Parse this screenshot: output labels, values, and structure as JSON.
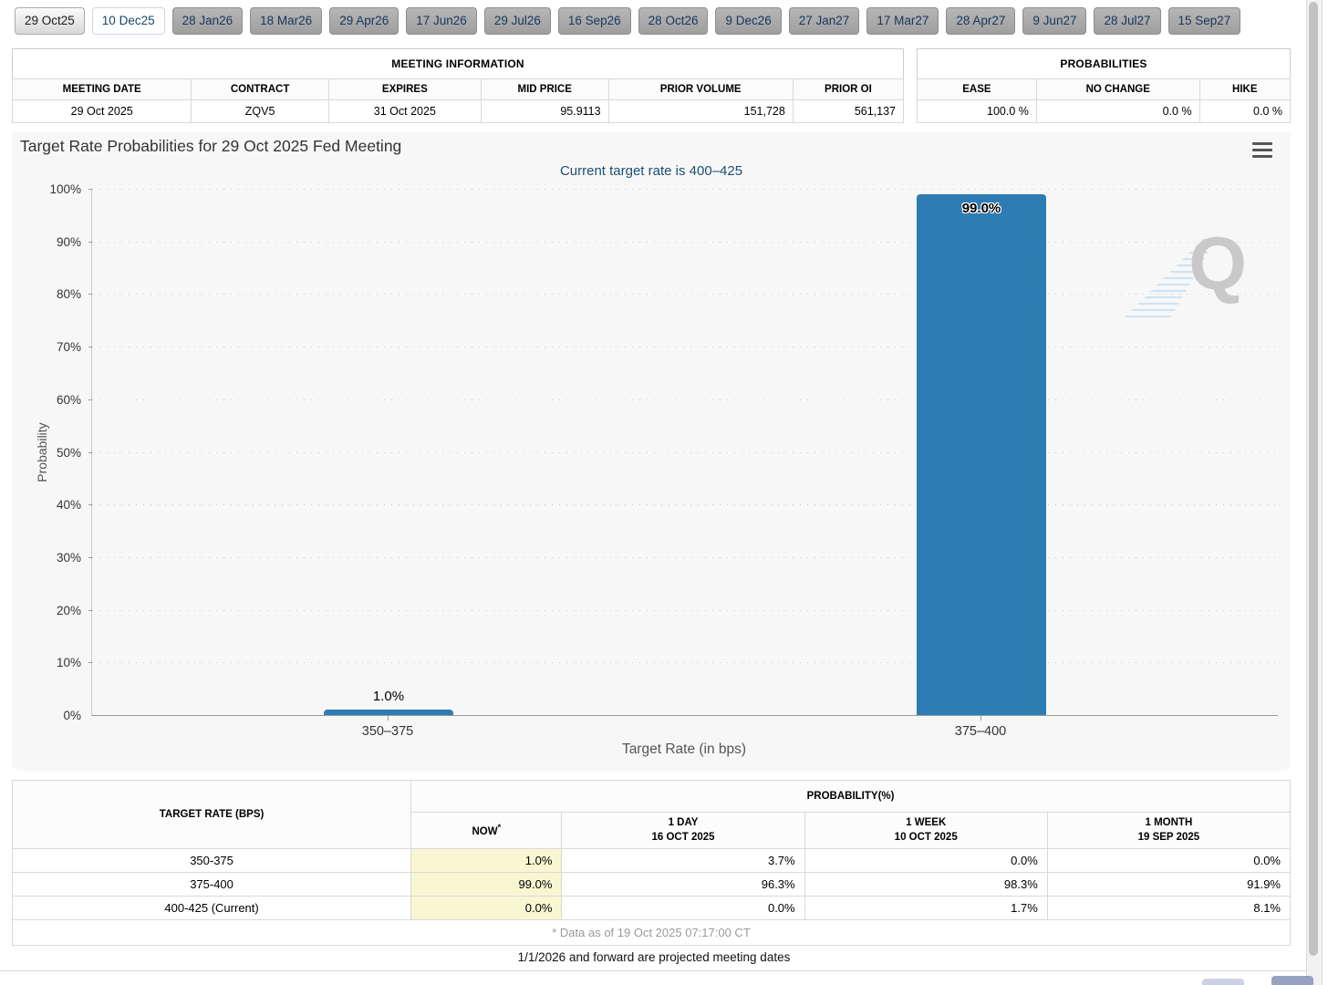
{
  "tabs": {
    "items": [
      {
        "label": "29 Oct25",
        "state": "selected"
      },
      {
        "label": "10 Dec25",
        "state": "highlight"
      },
      {
        "label": "28 Jan26",
        "state": "default"
      },
      {
        "label": "18 Mar26",
        "state": "default"
      },
      {
        "label": "29 Apr26",
        "state": "default"
      },
      {
        "label": "17 Jun26",
        "state": "default"
      },
      {
        "label": "29 Jul26",
        "state": "default"
      },
      {
        "label": "16 Sep26",
        "state": "default"
      },
      {
        "label": "28 Oct26",
        "state": "default"
      },
      {
        "label": "9 Dec26",
        "state": "default"
      },
      {
        "label": "27 Jan27",
        "state": "default"
      },
      {
        "label": "17 Mar27",
        "state": "default"
      },
      {
        "label": "28 Apr27",
        "state": "default"
      },
      {
        "label": "9 Jun27",
        "state": "default"
      },
      {
        "label": "28 Jul27",
        "state": "default"
      },
      {
        "label": "15 Sep27",
        "state": "default"
      }
    ]
  },
  "meeting_info": {
    "title": "MEETING INFORMATION",
    "headers": [
      "MEETING DATE",
      "CONTRACT",
      "EXPIRES",
      "MID PRICE",
      "PRIOR VOLUME",
      "PRIOR OI"
    ],
    "row": {
      "meeting_date": "29 Oct 2025",
      "contract": "ZQV5",
      "expires": "31 Oct 2025",
      "mid_price": "95.9113",
      "prior_volume": "151,728",
      "prior_oi": "561,137"
    }
  },
  "probabilities_summary": {
    "title": "PROBABILITIES",
    "headers": [
      "EASE",
      "NO CHANGE",
      "HIKE"
    ],
    "row": {
      "ease": "100.0 %",
      "no_change": "0.0 %",
      "hike": "0.0 %"
    }
  },
  "chart_data": {
    "type": "bar",
    "title": "Target Rate Probabilities for 29 Oct 2025 Fed Meeting",
    "subtitle": "Current target rate is 400–425",
    "xlabel": "Target Rate (in bps)",
    "ylabel": "Probability",
    "categories": [
      "350–375",
      "375–400"
    ],
    "values": [
      1.0,
      99.0
    ],
    "bar_labels": [
      "1.0%",
      "99.0%"
    ],
    "ylim": [
      0,
      100
    ],
    "ytick_step": 10,
    "ytick_suffix": "%",
    "bar_color": "#2d7cb3",
    "grid": "dotted horizontal",
    "legend": "none",
    "watermark_letter": "Q"
  },
  "prob_table": {
    "col_header": "TARGET RATE (BPS)",
    "group_header": "PROBABILITY(%)",
    "sub_headers": {
      "now": "NOW",
      "now_sup": "*",
      "d1_line1": "1 DAY",
      "d1_line2": "16 OCT 2025",
      "w1_line1": "1 WEEK",
      "w1_line2": "10 OCT 2025",
      "m1_line1": "1 MONTH",
      "m1_line2": "19 SEP 2025"
    },
    "rows": [
      {
        "rate": "350-375",
        "now": "1.0%",
        "d1": "3.7%",
        "w1": "0.0%",
        "m1": "0.0%"
      },
      {
        "rate": "375-400",
        "now": "99.0%",
        "d1": "96.3%",
        "w1": "98.3%",
        "m1": "91.9%"
      },
      {
        "rate": "400-425 (Current)",
        "now": "0.0%",
        "d1": "0.0%",
        "w1": "1.7%",
        "m1": "8.1%"
      }
    ],
    "footnote": "* Data as of 19 Oct 2025 07:17:00 CT",
    "now_highlight_color": "#f7f7d2"
  },
  "notes": {
    "projected": "1/1/2026 and forward are projected meeting dates"
  }
}
